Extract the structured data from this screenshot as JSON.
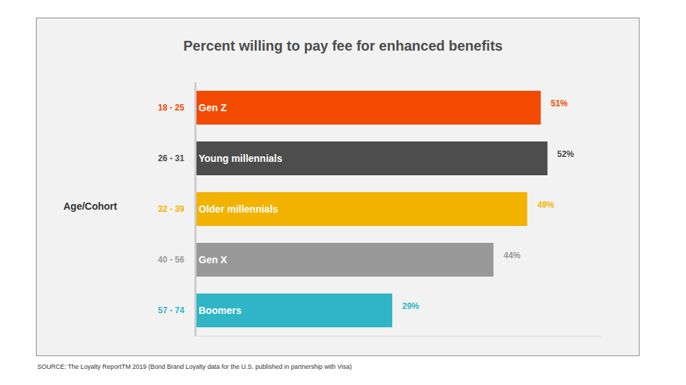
{
  "chart_data": {
    "type": "bar",
    "orientation": "horizontal",
    "title": "Percent willing to pay fee for enhanced benefits",
    "ylabel": "Age/Cohort",
    "categories": [
      "Gen Z",
      "Young millennials",
      "Older millennials",
      "Gen X",
      "Boomers"
    ],
    "age_ranges": [
      "18 - 25",
      "26 - 31",
      "32 - 39",
      "40 - 56",
      "57 - 74"
    ],
    "values": [
      51,
      52,
      49,
      44,
      29
    ],
    "value_labels": [
      "51%",
      "52%",
      "49%",
      "44%",
      "29%"
    ],
    "colors": [
      "#f24a00",
      "#4d4d4d",
      "#f2b200",
      "#999999",
      "#2fb5c5"
    ],
    "data_labels": true,
    "tick_labels": "y",
    "grid": false,
    "xlim": [
      0,
      60
    ],
    "xticks": [],
    "source": "SOURCE: The Loyalty ReportTM 2019 (Bond Brand Loyalty data for the U.S. published in partnership with Visa)"
  }
}
